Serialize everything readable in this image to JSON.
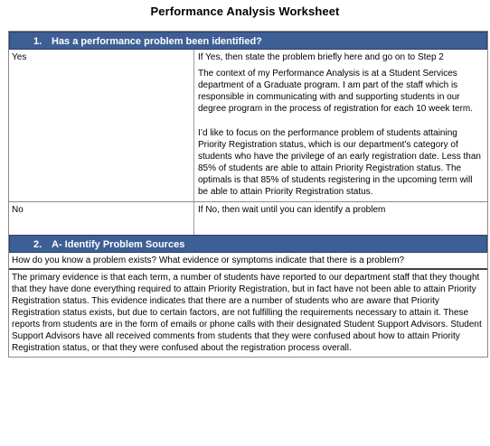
{
  "title": "Performance Analysis Worksheet",
  "section1": {
    "number": "1.",
    "heading": "Has a performance problem been identified?",
    "yes_label": "Yes",
    "yes_instruction": "If Yes, then state the problem briefly here and go on to Step 2",
    "yes_para1": "The context of my Performance Analysis is at a Student Services department of a Graduate program. I am part of the staff which is responsible in communicating with and supporting students in our degree program in the process of registration for each 10 week term.",
    "yes_para2": "I’d like to focus on the performance problem of students attaining Priority Registration status, which is our department’s category of students who have the privilege of an early registration date. Less than 85% of students are able to attain Priority Registration status. The optimals is that 85% of students registering in the upcoming term will be able to attain Priority Registration status.",
    "no_label": "No",
    "no_instruction": "If No, then wait until you can identify a problem"
  },
  "section2": {
    "number": "2.",
    "heading": "A- Identify Problem Sources",
    "question": "How do you know a problem exists? What evidence or symptoms indicate that there is a problem?",
    "answer": "The primary evidence is that each term, a number of students have reported to our department staff that they thought that they have done everything required to attain Priority Registration, but in fact have not been able to attain Priority Registration status. This evidence indicates that there are a number of students who are aware that Priority Registration status exists, but due to certain factors, are not fulfilling the requirements necessary to attain it. These reports from students are in the form of emails or phone calls with their designated Student Support Advisors. Student Support Advisors have all received comments from students that they were confused about how to attain Priority Registration status, or that they were confused about the registration process overall."
  }
}
